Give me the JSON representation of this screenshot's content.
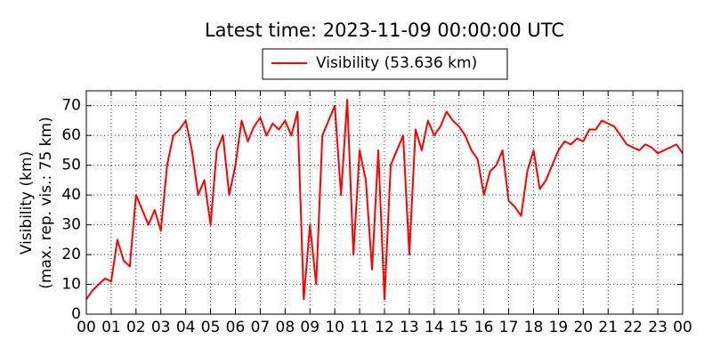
{
  "chart_data": {
    "type": "line",
    "title": "Latest time: 2023-11-09 00:00:00 UTC",
    "ylabel": [
      "Visibility (km)",
      "(max. rep. vis.: 75 km)"
    ],
    "x": [
      0,
      0.25,
      0.5,
      0.75,
      1,
      1.25,
      1.5,
      1.75,
      2,
      2.25,
      2.5,
      2.75,
      3,
      3.25,
      3.5,
      3.75,
      4,
      4.25,
      4.5,
      4.75,
      5,
      5.25,
      5.5,
      5.75,
      6,
      6.25,
      6.5,
      6.75,
      7,
      7.25,
      7.5,
      7.75,
      8,
      8.25,
      8.5,
      8.75,
      9,
      9.25,
      9.5,
      9.75,
      10,
      10.25,
      10.5,
      10.75,
      11,
      11.25,
      11.5,
      11.75,
      12,
      12.25,
      12.5,
      12.75,
      13,
      13.25,
      13.5,
      13.75,
      14,
      14.25,
      14.5,
      14.75,
      15,
      15.25,
      15.5,
      15.75,
      16,
      16.25,
      16.5,
      16.75,
      17,
      17.25,
      17.5,
      17.75,
      18,
      18.25,
      18.5,
      18.75,
      19,
      19.25,
      19.5,
      19.75,
      20,
      20.25,
      20.5,
      20.75,
      21,
      21.25,
      21.5,
      21.75,
      22,
      22.25,
      22.5,
      22.75,
      23,
      23.25,
      23.5,
      23.75,
      24
    ],
    "series": [
      {
        "name": "Visibility (53.636 km)",
        "color": "#ff0000",
        "values": [
          5,
          8,
          10,
          12,
          11,
          25,
          18,
          16,
          40,
          35,
          30,
          35,
          28,
          50,
          60,
          62,
          65,
          55,
          40,
          45,
          30,
          55,
          60,
          40,
          50,
          65,
          58,
          63,
          66,
          60,
          64,
          62,
          65,
          60,
          68,
          5,
          30,
          10,
          60,
          65,
          70,
          40,
          72,
          20,
          55,
          45,
          15,
          55,
          5,
          50,
          55,
          60,
          20,
          62,
          55,
          65,
          60,
          63,
          68,
          65,
          63,
          60,
          55,
          52,
          40,
          48,
          50,
          55,
          38,
          36,
          33,
          48,
          55,
          42,
          45,
          50,
          55,
          58,
          57,
          59,
          58,
          62,
          62,
          65,
          64,
          63,
          60,
          57,
          56,
          55,
          57,
          56,
          54,
          55,
          56,
          57,
          54
        ]
      }
    ],
    "xlim": [
      0,
      24
    ],
    "xticks": [
      {
        "value": 0,
        "label": "00"
      },
      {
        "value": 1,
        "label": "01"
      },
      {
        "value": 2,
        "label": "02"
      },
      {
        "value": 3,
        "label": "03"
      },
      {
        "value": 4,
        "label": "04"
      },
      {
        "value": 5,
        "label": "05"
      },
      {
        "value": 6,
        "label": "06"
      },
      {
        "value": 7,
        "label": "07"
      },
      {
        "value": 8,
        "label": "08"
      },
      {
        "value": 9,
        "label": "09"
      },
      {
        "value": 10,
        "label": "10"
      },
      {
        "value": 11,
        "label": "11"
      },
      {
        "value": 12,
        "label": "12"
      },
      {
        "value": 13,
        "label": "13"
      },
      {
        "value": 14,
        "label": "14"
      },
      {
        "value": 15,
        "label": "15"
      },
      {
        "value": 16,
        "label": "16"
      },
      {
        "value": 17,
        "label": "17"
      },
      {
        "value": 18,
        "label": "18"
      },
      {
        "value": 19,
        "label": "19"
      },
      {
        "value": 20,
        "label": "20"
      },
      {
        "value": 21,
        "label": "21"
      },
      {
        "value": 22,
        "label": "22"
      },
      {
        "value": 23,
        "label": "23"
      },
      {
        "value": 24,
        "label": "00"
      }
    ],
    "ylim": [
      0,
      75
    ],
    "yticks": [
      0,
      10,
      20,
      30,
      40,
      50,
      60,
      70
    ],
    "grid": true
  }
}
